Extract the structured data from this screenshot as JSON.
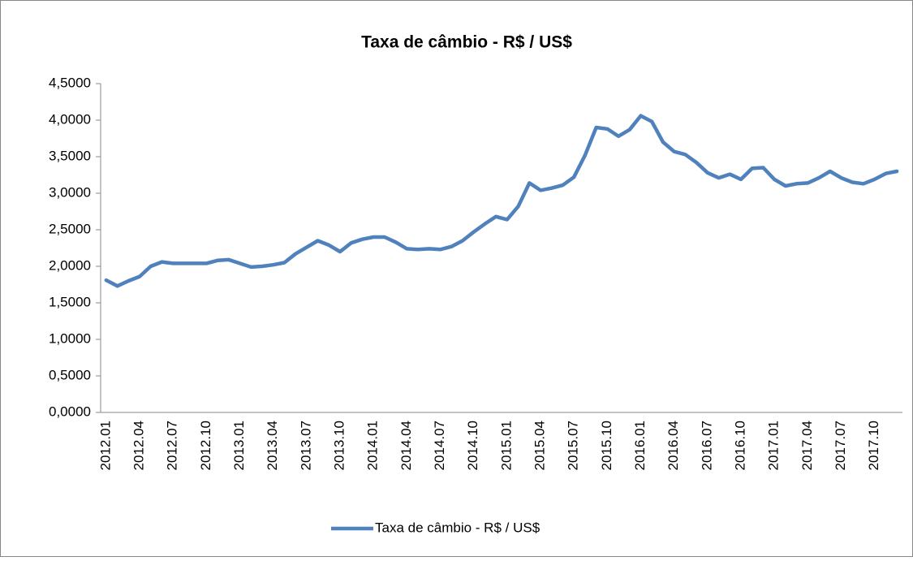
{
  "chart_data": {
    "type": "line",
    "title": "Taxa de câmbio - R$ / US$",
    "categories": [
      "2012.01",
      null,
      null,
      "2012.04",
      null,
      null,
      "2012.07",
      null,
      null,
      "2012.10",
      null,
      null,
      "2013.01",
      null,
      null,
      "2013.04",
      null,
      null,
      "2013.07",
      null,
      null,
      "2013.10",
      null,
      null,
      "2014.01",
      null,
      null,
      "2014.04",
      null,
      null,
      "2014.07",
      null,
      null,
      "2014.10",
      null,
      null,
      "2015.01",
      null,
      null,
      "2015.04",
      null,
      null,
      "2015.07",
      null,
      null,
      "2015.10",
      null,
      null,
      "2016.01",
      null,
      null,
      "2016.04",
      null,
      null,
      "2016.07",
      null,
      null,
      "2016.10",
      null,
      null,
      "2017.01",
      null,
      null,
      "2017.04",
      null,
      null,
      "2017.07",
      null,
      null,
      "2017.10",
      null,
      null
    ],
    "series": [
      {
        "name": "Taxa de câmbio - R$ / US$",
        "color": "#4f81bd",
        "values": [
          1.81,
          1.73,
          1.8,
          1.86,
          2.0,
          2.06,
          2.04,
          2.04,
          2.04,
          2.04,
          2.08,
          2.09,
          2.04,
          1.99,
          2.0,
          2.02,
          2.05,
          2.17,
          2.26,
          2.35,
          2.29,
          2.2,
          2.32,
          2.37,
          2.4,
          2.4,
          2.33,
          2.24,
          2.23,
          2.24,
          2.23,
          2.27,
          2.35,
          2.47,
          2.58,
          2.68,
          2.64,
          2.82,
          3.14,
          3.04,
          3.07,
          3.11,
          3.22,
          3.52,
          3.9,
          3.88,
          3.78,
          3.87,
          4.06,
          3.98,
          3.7,
          3.57,
          3.53,
          3.42,
          3.28,
          3.21,
          3.26,
          3.19,
          3.34,
          3.35,
          3.19,
          3.1,
          3.13,
          3.14,
          3.21,
          3.3,
          3.21,
          3.15,
          3.13,
          3.19,
          3.27,
          3.3
        ]
      }
    ],
    "ylim": [
      0,
      4.5
    ],
    "yticks": [
      {
        "value": 0,
        "label": "0,0000"
      },
      {
        "value": 0.5,
        "label": "0,5000"
      },
      {
        "value": 1,
        "label": "1,0000"
      },
      {
        "value": 1.5,
        "label": "1,5000"
      },
      {
        "value": 2,
        "label": "2,0000"
      },
      {
        "value": 2.5,
        "label": "2,5000"
      },
      {
        "value": 3,
        "label": "3,0000"
      },
      {
        "value": 3.5,
        "label": "3,5000"
      },
      {
        "value": 4,
        "label": "4,0000"
      },
      {
        "value": 4.5,
        "label": "4,5000"
      }
    ],
    "grid": false,
    "legend": "bottom"
  }
}
